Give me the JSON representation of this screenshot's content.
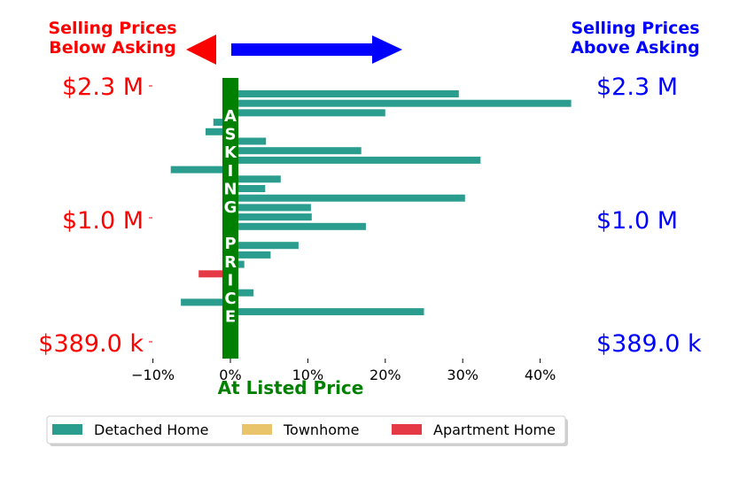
{
  "header": {
    "left_line1": "Selling Prices",
    "left_line2": "Below Asking",
    "right_line1": "Selling Prices",
    "right_line2": "Above Asking"
  },
  "price_labels": {
    "left": [
      "$2.3 M",
      "$1.0 M",
      "$389.0 k"
    ],
    "right": [
      "$2.3 M",
      "$1.0 M",
      "$389.0 k"
    ]
  },
  "vertical_label": [
    "A",
    "S",
    "K",
    "I",
    "N",
    "G",
    "",
    "P",
    "R",
    "I",
    "C",
    "E"
  ],
  "colors": {
    "below": "#ff0000",
    "above": "#0000ff",
    "asking_bar": "#008000",
    "detached": "#2a9d8f",
    "townhome": "#e9c46a",
    "apartment": "#e63946"
  },
  "chart_data": {
    "type": "bar",
    "orientation": "horizontal",
    "xlabel": "At Listed Price",
    "xlim": [
      -0.1,
      0.44
    ],
    "xticks": [
      -0.1,
      0,
      0.1,
      0.2,
      0.3,
      0.4
    ],
    "xtick_labels": [
      "−10%",
      "0%",
      "10%",
      "20%",
      "30%",
      "40%"
    ],
    "series": [
      {
        "name": "Detached Home",
        "color": "#2a9d8f"
      },
      {
        "name": "Townhome",
        "color": "#e9c46a"
      },
      {
        "name": "Apartment Home",
        "color": "#e63946"
      }
    ],
    "bars": [
      {
        "series": "Detached Home",
        "value": 0.295
      },
      {
        "series": "Detached Home",
        "value": 0.44
      },
      {
        "series": "Detached Home",
        "value": 0.2
      },
      {
        "series": "Detached Home",
        "value": -0.022
      },
      {
        "series": "Detached Home",
        "value": -0.032
      },
      {
        "series": "Detached Home",
        "value": 0.046
      },
      {
        "series": "Detached Home",
        "value": 0.169
      },
      {
        "series": "Detached Home",
        "value": 0.323
      },
      {
        "series": "Detached Home",
        "value": -0.077
      },
      {
        "series": "Detached Home",
        "value": 0.065
      },
      {
        "series": "Detached Home",
        "value": 0.045
      },
      {
        "series": "Detached Home",
        "value": 0.303
      },
      {
        "series": "Detached Home",
        "value": 0.104
      },
      {
        "series": "Detached Home",
        "value": 0.105
      },
      {
        "series": "Detached Home",
        "value": 0.175
      },
      {
        "series": "Detached Home",
        "value": 0.003
      },
      {
        "series": "Detached Home",
        "value": 0.088
      },
      {
        "series": "Detached Home",
        "value": 0.052
      },
      {
        "series": "Detached Home",
        "value": 0.018
      },
      {
        "series": "Apartment Home",
        "value": -0.041
      },
      {
        "series": "Detached Home",
        "value": 0.01
      },
      {
        "series": "Detached Home",
        "value": 0.03
      },
      {
        "series": "Detached Home",
        "value": -0.064
      },
      {
        "series": "Detached Home",
        "value": 0.25
      },
      {
        "series": "Detached Home",
        "value": 0.005
      }
    ],
    "legend": [
      "Detached Home",
      "Townhome",
      "Apartment Home"
    ],
    "legend_position": "bottom"
  }
}
